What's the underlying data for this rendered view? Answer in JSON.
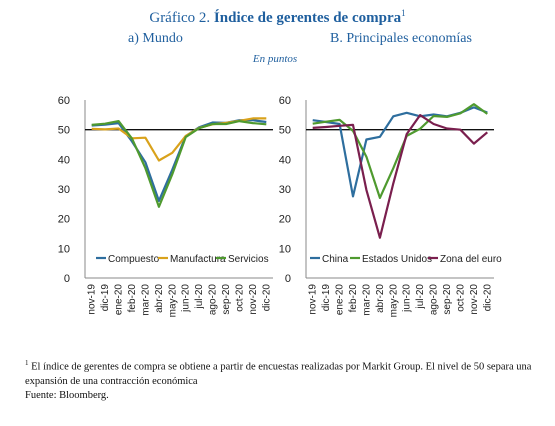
{
  "header": {
    "title_prefix": "Gráfico 2.",
    "title_main": "Índice de gerentes de compra",
    "title_sup": "1",
    "panel_a_label": "a)   Mundo",
    "panel_b_label": "B. Principales economías",
    "units": "En puntos"
  },
  "chart_data": [
    {
      "type": "line",
      "title": "a)   Mundo",
      "categories": [
        "nov-19",
        "dic-19",
        "ene-20",
        "feb-20",
        "mar-20",
        "abr-20",
        "may-20",
        "jun-20",
        "jul-20",
        "ago-20",
        "sep-20",
        "oct-20",
        "nov-20",
        "dic-20"
      ],
      "ylim": [
        0,
        60
      ],
      "yticks": [
        0,
        10,
        20,
        30,
        40,
        50,
        60
      ],
      "reference_line": 50,
      "legend_position": "bottom",
      "grid": false,
      "series": [
        {
          "name": "Compuesto",
          "color": "#2e6e9e",
          "values": [
            51.4,
            51.7,
            52.2,
            46.0,
            39.0,
            26.0,
            36.5,
            47.8,
            50.8,
            52.4,
            52.3,
            53.2,
            53.2,
            52.6
          ]
        },
        {
          "name": "Manufactura",
          "color": "#d9a21b",
          "values": [
            50.3,
            50.1,
            50.4,
            47.1,
            47.3,
            39.6,
            42.2,
            47.9,
            50.6,
            51.8,
            52.3,
            53.0,
            53.8,
            53.8
          ]
        },
        {
          "name": "Servicios",
          "color": "#4f9a2f",
          "values": [
            51.6,
            52.0,
            52.9,
            47.0,
            37.0,
            24.0,
            35.0,
            47.5,
            50.5,
            51.9,
            51.9,
            52.9,
            52.2,
            51.8
          ]
        }
      ]
    },
    {
      "type": "line",
      "title": "B. Principales economías",
      "categories": [
        "nov-19",
        "dic-19",
        "ene-20",
        "feb-20",
        "mar-20",
        "abr-20",
        "may-20",
        "jun-20",
        "jul-20",
        "ago-20",
        "sep-20",
        "oct-20",
        "nov-20",
        "dic-20"
      ],
      "ylim": [
        0,
        60
      ],
      "yticks": [
        0,
        10,
        20,
        30,
        40,
        50,
        60
      ],
      "reference_line": 50,
      "legend_position": "bottom",
      "grid": false,
      "series": [
        {
          "name": "China",
          "color": "#2e6e9e",
          "values": [
            53.2,
            52.6,
            51.9,
            27.5,
            46.7,
            47.6,
            54.5,
            55.7,
            54.5,
            55.1,
            54.5,
            55.7,
            57.5,
            55.8
          ]
        },
        {
          "name": "Estados Unidos",
          "color": "#4f9a2f",
          "values": [
            52.0,
            52.7,
            53.3,
            49.6,
            40.9,
            27.0,
            37.0,
            47.9,
            50.3,
            54.6,
            54.3,
            55.5,
            58.6,
            55.3
          ]
        },
        {
          "name": "Zona del euro",
          "color": "#7a1f4e",
          "values": [
            50.6,
            50.9,
            51.3,
            51.6,
            29.7,
            13.6,
            31.9,
            48.5,
            54.9,
            51.9,
            50.4,
            50.0,
            45.3,
            49.1
          ]
        }
      ]
    }
  ],
  "footnote": {
    "marker": "1",
    "text": " El índice de gerentes de compra se obtiene a partir de encuestas realizadas por Markit Group. El nivel de 50 separa una expansión de una contracción económica",
    "source": "Fuente: Bloomberg."
  }
}
